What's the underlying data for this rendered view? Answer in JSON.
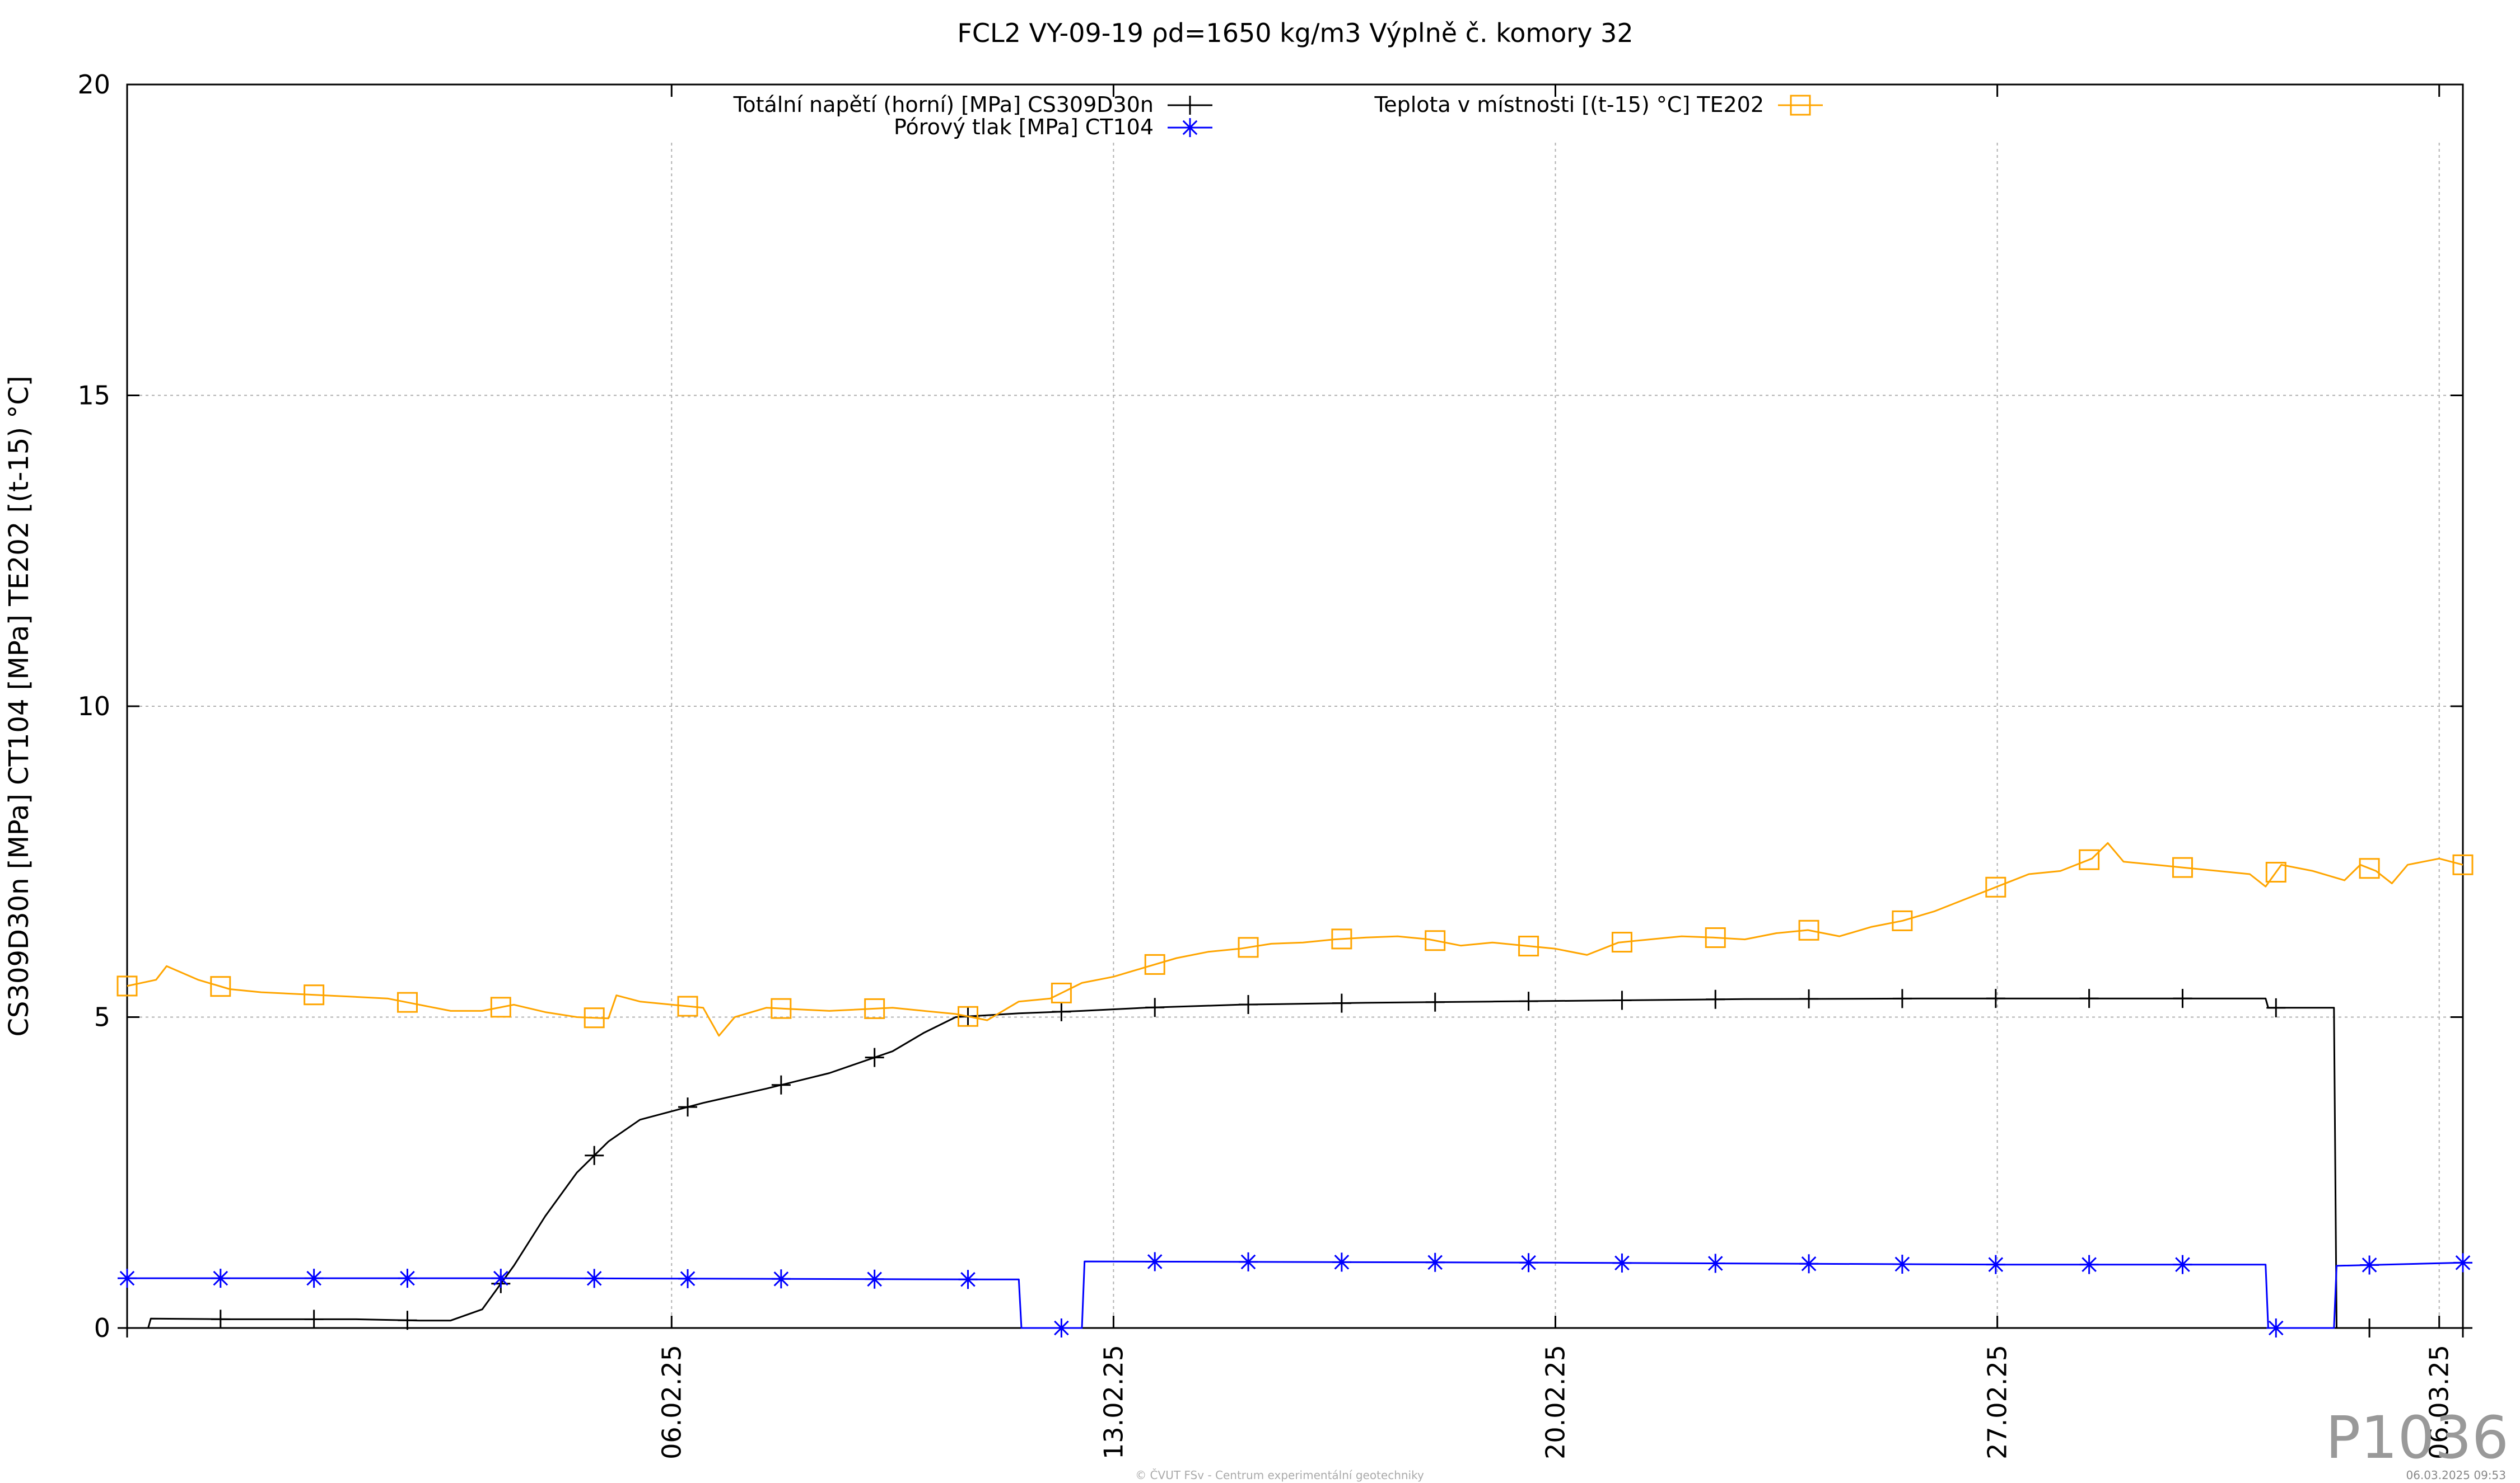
{
  "chart_data": {
    "type": "line",
    "title": "FCL2 VY-09-19 ρd=1650 kg/m3 Výplně č. komory 32",
    "ylabel": "CS309D30n [MPa] CT104 [MPa] TE202 [(t-15) °C]",
    "xlabel": "",
    "ylim": [
      0,
      20
    ],
    "yticks": [
      "0",
      "5",
      "10",
      "15",
      "20"
    ],
    "x_axis": {
      "type": "date",
      "range": [
        "2025-01-28T09:00",
        "2025-03-06T09:00"
      ],
      "ticks": [
        {
          "date": "2025-02-06",
          "label": "06.02.25"
        },
        {
          "date": "2025-02-13",
          "label": "13.02.25"
        },
        {
          "date": "2025-02-20",
          "label": "20.02.25"
        },
        {
          "date": "2025-02-27",
          "label": "27.02.25"
        },
        {
          "date": "2025-03-06",
          "label": "06.03.25"
        }
      ]
    },
    "grid": true,
    "legend_position": "top",
    "series": [
      {
        "name": "Totální napětí (horní) [MPa] CS309D30n",
        "color": "#000000",
        "marker": "plus",
        "points": [
          [
            "2025-01-28T09:00",
            0.0
          ],
          [
            "2025-01-28T17:00",
            0.0
          ],
          [
            "2025-01-28T18:00",
            0.15
          ],
          [
            "2025-01-30T00:00",
            0.14
          ],
          [
            "2025-02-01T00:00",
            0.14
          ],
          [
            "2025-02-02T00:00",
            0.12
          ],
          [
            "2025-02-02T12:00",
            0.12
          ],
          [
            "2025-02-03T00:00",
            0.3
          ],
          [
            "2025-02-03T12:00",
            1.0
          ],
          [
            "2025-02-04T00:00",
            1.8
          ],
          [
            "2025-02-04T12:00",
            2.5
          ],
          [
            "2025-02-05T00:00",
            3.0
          ],
          [
            "2025-02-05T12:00",
            3.35
          ],
          [
            "2025-02-06T12:00",
            3.62
          ],
          [
            "2025-02-07T12:00",
            3.85
          ],
          [
            "2025-02-08T12:00",
            4.1
          ],
          [
            "2025-02-09T12:00",
            4.45
          ],
          [
            "2025-02-10T00:00",
            4.75
          ],
          [
            "2025-02-10T12:00",
            5.0
          ],
          [
            "2025-02-11T12:00",
            5.06
          ],
          [
            "2025-02-12T12:00",
            5.1
          ],
          [
            "2025-02-13T12:00",
            5.15
          ],
          [
            "2025-02-15T00:00",
            5.2
          ],
          [
            "2025-02-17T00:00",
            5.23
          ],
          [
            "2025-02-19T00:00",
            5.25
          ],
          [
            "2025-02-21T00:00",
            5.27
          ],
          [
            "2025-02-23T00:00",
            5.29
          ],
          [
            "2025-02-26T00:00",
            5.3
          ],
          [
            "2025-03-02T00:00",
            5.3
          ],
          [
            "2025-03-03T06:00",
            5.3
          ],
          [
            "2025-03-03T07:00",
            5.15
          ],
          [
            "2025-03-04T08:00",
            5.15
          ],
          [
            "2025-03-04T09:00",
            0.0
          ],
          [
            "2025-03-06T09:00",
            0.0
          ]
        ]
      },
      {
        "name": "Pórový tlak [MPa] CT104",
        "color": "#0000ff",
        "marker": "asterisk",
        "points": [
          [
            "2025-01-28T09:00",
            0.8
          ],
          [
            "2025-02-04T00:00",
            0.8
          ],
          [
            "2025-02-11T00:00",
            0.78
          ],
          [
            "2025-02-11T12:00",
            0.78
          ],
          [
            "2025-02-11T13:00",
            0.0
          ],
          [
            "2025-02-12T12:00",
            0.0
          ],
          [
            "2025-02-12T13:00",
            1.07
          ],
          [
            "2025-02-20T00:00",
            1.05
          ],
          [
            "2025-02-27T00:00",
            1.02
          ],
          [
            "2025-03-03T06:00",
            1.02
          ],
          [
            "2025-03-03T07:00",
            0.0
          ],
          [
            "2025-03-04T08:00",
            0.0
          ],
          [
            "2025-03-04T09:00",
            1.0
          ],
          [
            "2025-03-06T09:00",
            1.05
          ]
        ]
      },
      {
        "name": "Teplota v místnosti [(t-15) °C] TE202",
        "color": "#ffa500",
        "marker": "square",
        "points": [
          [
            "2025-01-28T09:00",
            5.5
          ],
          [
            "2025-01-28T20:00",
            5.6
          ],
          [
            "2025-01-29T00:00",
            5.82
          ],
          [
            "2025-01-29T12:00",
            5.6
          ],
          [
            "2025-01-30T00:00",
            5.45
          ],
          [
            "2025-01-30T12:00",
            5.4
          ],
          [
            "2025-01-31T12:00",
            5.35
          ],
          [
            "2025-02-01T12:00",
            5.3
          ],
          [
            "2025-02-02T00:00",
            5.2
          ],
          [
            "2025-02-02T12:00",
            5.1
          ],
          [
            "2025-02-03T00:00",
            5.1
          ],
          [
            "2025-02-03T12:00",
            5.2
          ],
          [
            "2025-02-04T00:00",
            5.08
          ],
          [
            "2025-02-04T12:00",
            5.0
          ],
          [
            "2025-02-05T00:00",
            4.98
          ],
          [
            "2025-02-05T03:00",
            5.35
          ],
          [
            "2025-02-05T12:00",
            5.25
          ],
          [
            "2025-02-06T00:00",
            5.2
          ],
          [
            "2025-02-06T12:00",
            5.15
          ],
          [
            "2025-02-06T18:00",
            4.7
          ],
          [
            "2025-02-07T00:00",
            5.0
          ],
          [
            "2025-02-07T12:00",
            5.15
          ],
          [
            "2025-02-08T12:00",
            5.1
          ],
          [
            "2025-02-09T12:00",
            5.15
          ],
          [
            "2025-02-10T00:00",
            5.1
          ],
          [
            "2025-02-10T12:00",
            5.05
          ],
          [
            "2025-02-11T00:00",
            4.95
          ],
          [
            "2025-02-11T12:00",
            5.25
          ],
          [
            "2025-02-12T00:00",
            5.3
          ],
          [
            "2025-02-12T12:00",
            5.55
          ],
          [
            "2025-02-13T00:00",
            5.65
          ],
          [
            "2025-02-13T12:00",
            5.8
          ],
          [
            "2025-02-14T00:00",
            5.95
          ],
          [
            "2025-02-14T12:00",
            6.05
          ],
          [
            "2025-02-15T00:00",
            6.1
          ],
          [
            "2025-02-15T12:00",
            6.18
          ],
          [
            "2025-02-16T00:00",
            6.2
          ],
          [
            "2025-02-16T12:00",
            6.25
          ],
          [
            "2025-02-17T00:00",
            6.28
          ],
          [
            "2025-02-17T12:00",
            6.3
          ],
          [
            "2025-02-18T00:00",
            6.25
          ],
          [
            "2025-02-18T12:00",
            6.15
          ],
          [
            "2025-02-19T00:00",
            6.2
          ],
          [
            "2025-02-19T12:00",
            6.15
          ],
          [
            "2025-02-20T00:00",
            6.1
          ],
          [
            "2025-02-20T12:00",
            6.0
          ],
          [
            "2025-02-21T00:00",
            6.2
          ],
          [
            "2025-02-21T12:00",
            6.25
          ],
          [
            "2025-02-22T00:00",
            6.3
          ],
          [
            "2025-02-22T12:00",
            6.28
          ],
          [
            "2025-02-23T00:00",
            6.25
          ],
          [
            "2025-02-23T12:00",
            6.35
          ],
          [
            "2025-02-24T00:00",
            6.4
          ],
          [
            "2025-02-24T12:00",
            6.3
          ],
          [
            "2025-02-25T00:00",
            6.45
          ],
          [
            "2025-02-25T12:00",
            6.55
          ],
          [
            "2025-02-26T00:00",
            6.7
          ],
          [
            "2025-02-26T12:00",
            6.9
          ],
          [
            "2025-02-27T00:00",
            7.1
          ],
          [
            "2025-02-27T12:00",
            7.3
          ],
          [
            "2025-02-28T00:00",
            7.35
          ],
          [
            "2025-02-28T12:00",
            7.55
          ],
          [
            "2025-02-28T18:00",
            7.8
          ],
          [
            "2025-03-01T00:00",
            7.5
          ],
          [
            "2025-03-01T12:00",
            7.45
          ],
          [
            "2025-03-02T00:00",
            7.4
          ],
          [
            "2025-03-02T12:00",
            7.35
          ],
          [
            "2025-03-03T00:00",
            7.3
          ],
          [
            "2025-03-03T06:00",
            7.1
          ],
          [
            "2025-03-03T12:00",
            7.45
          ],
          [
            "2025-03-04T00:00",
            7.35
          ],
          [
            "2025-03-04T12:00",
            7.2
          ],
          [
            "2025-03-04T18:00",
            7.45
          ],
          [
            "2025-03-05T00:00",
            7.35
          ],
          [
            "2025-03-05T06:00",
            7.15
          ],
          [
            "2025-03-05T12:00",
            7.45
          ],
          [
            "2025-03-06T00:00",
            7.55
          ],
          [
            "2025-03-06T09:00",
            7.45
          ]
        ]
      }
    ]
  },
  "corner_label": "P1036",
  "footer_credit": "© ČVUT FSv - Centrum experimentální geotechniky",
  "footer_timestamp": "06.03.2025 09:53"
}
